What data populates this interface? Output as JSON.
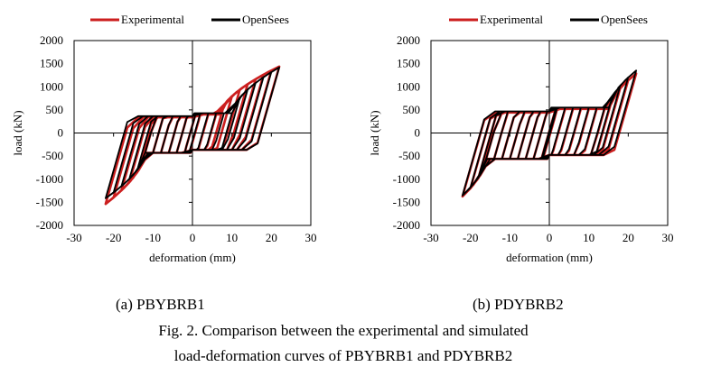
{
  "figure_caption": {
    "line1": "Fig. 2. Comparison between the experimental and simulated",
    "line2": "load-deformation curves of PBYBRB1 and PDYBRB2"
  },
  "colors": {
    "experimental": "#cc1f1f",
    "opensees": "#000000"
  },
  "chart_data": [
    {
      "type": "line",
      "caption": "(a) PBYBRB1",
      "xlabel": "deformation (mm)",
      "ylabel": "load (kN)",
      "xlim": [
        -30,
        30
      ],
      "ylim": [
        -2000,
        2000
      ],
      "xticks": [
        -30,
        -20,
        -10,
        0,
        10,
        20,
        30
      ],
      "yticks": [
        2000,
        1500,
        1000,
        500,
        0,
        -500,
        -1000,
        -1500,
        -2000
      ],
      "xtick_labels": [
        "-30",
        "-20",
        "-10",
        "0",
        "10",
        "20",
        "30"
      ],
      "ytick_labels": [
        "2000",
        "1500",
        "1000",
        "500",
        "0",
        "-500",
        "-1000",
        "-1500",
        "-2000"
      ],
      "legend": {
        "position": "top",
        "entries": [
          "Experimental",
          "OpenSees"
        ]
      },
      "grid": false,
      "series": [
        {
          "name": "Experimental",
          "color": "#cc1f1f",
          "hysteresis": {
            "amplitudes": [
              2,
              4,
              6,
              8,
              10,
              12,
              14,
              16,
              18,
              20,
              22
            ],
            "peak_pos": 1480,
            "peak_neg": -1600,
            "plateau_pos": 400,
            "plateau_neg": -430,
            "hardening_pos_start": 7,
            "hardening_neg_start": -12
          }
        },
        {
          "name": "OpenSees",
          "color": "#000000",
          "hysteresis": {
            "amplitudes": [
              2,
              4,
              6,
              8,
              10,
              12,
              14,
              16,
              18,
              20,
              22
            ],
            "peak_pos": 1470,
            "peak_neg": -1470,
            "plateau_pos": 430,
            "plateau_neg": -430,
            "hardening_pos_start": 10,
            "hardening_neg_start": -12
          }
        }
      ]
    },
    {
      "type": "line",
      "caption": "(b) PDYBRB2",
      "xlabel": "deformation (mm)",
      "ylabel": "load (kN)",
      "xlim": [
        -30,
        30
      ],
      "ylim": [
        -2000,
        2000
      ],
      "xticks": [
        -30,
        -20,
        -10,
        0,
        10,
        20,
        30
      ],
      "yticks": [
        2000,
        1500,
        1000,
        500,
        0,
        -500,
        -1000,
        -1500,
        -2000
      ],
      "xtick_labels": [
        "-30",
        "-20",
        "-10",
        "0",
        "10",
        "20",
        "30"
      ],
      "ytick_labels": [
        "2000",
        "1500",
        "1000",
        "500",
        "0",
        "-500",
        "-1000",
        "-1500",
        "-2000"
      ],
      "legend": {
        "position": "top",
        "entries": [
          "Experimental",
          "OpenSees"
        ]
      },
      "grid": false,
      "series": [
        {
          "name": "Experimental",
          "color": "#cc1f1f",
          "hysteresis": {
            "amplitudes": [
              2,
              4,
              6,
              8,
              10,
              12,
              14,
              16,
              18,
              20,
              22
            ],
            "peak_pos": 1350,
            "peak_neg": -1450,
            "plateau_pos": 520,
            "plateau_neg": -560,
            "hardening_pos_start": 15,
            "hardening_neg_start": -16
          }
        },
        {
          "name": "OpenSees",
          "color": "#000000",
          "hysteresis": {
            "amplitudes": [
              2,
              4,
              6,
              8,
              10,
              12,
              14,
              16,
              18,
              20,
              22
            ],
            "peak_pos": 1420,
            "peak_neg": -1430,
            "plateau_pos": 550,
            "plateau_neg": -560,
            "hardening_pos_start": 15,
            "hardening_neg_start": -16
          }
        }
      ]
    }
  ]
}
